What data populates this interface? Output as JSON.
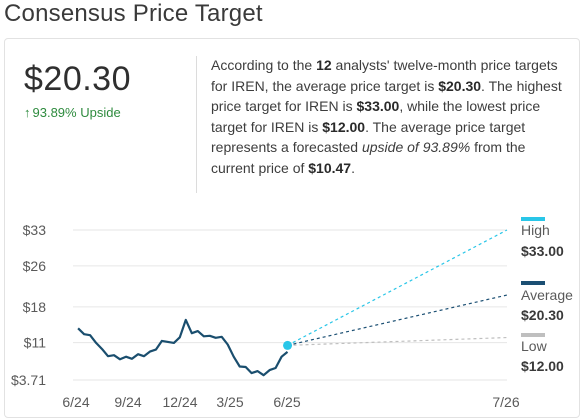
{
  "page_title": "Consensus Price Target",
  "price_target": "$20.30",
  "upside_arrow": "↑",
  "upside_text": "93.89% Upside",
  "summary": {
    "t1": "According to the ",
    "analysts": "12",
    "t2": " analysts' twelve-month price targets for IREN, the average price target is ",
    "avg": "$20.30",
    "t3": ". The highest price target for IREN is ",
    "high": "$33.00",
    "t4": ", while the lowest price target for IREN is ",
    "low": "$12.00",
    "t5": ". The average price target represents a forecasted ",
    "upside_phrase": "upside of 93.89%",
    "t6": " from the current price of ",
    "current": "$10.47",
    "t7": "."
  },
  "chart_data": {
    "type": "line",
    "y_ticks": [
      {
        "label": "$33",
        "value": 33
      },
      {
        "label": "$26",
        "value": 26
      },
      {
        "label": "$18",
        "value": 18
      },
      {
        "label": "$11",
        "value": 11
      },
      {
        "label": "$3.71",
        "value": 3.71
      }
    ],
    "x_ticks": [
      "6/24",
      "9/24",
      "12/24",
      "3/25",
      "6/25",
      "7/26"
    ],
    "ylim": [
      3.71,
      33
    ],
    "grid": true,
    "price_series": {
      "x": [
        "2024-06",
        "2024-06",
        "2024-07",
        "2024-07",
        "2024-07",
        "2024-08",
        "2024-08",
        "2024-08",
        "2024-09",
        "2024-09",
        "2024-09",
        "2024-10",
        "2024-10",
        "2024-10",
        "2024-11",
        "2024-11",
        "2024-11",
        "2024-12",
        "2024-12",
        "2024-12",
        "2025-01",
        "2025-01",
        "2025-01",
        "2025-02",
        "2025-02",
        "2025-02",
        "2025-03",
        "2025-03",
        "2025-03",
        "2025-04",
        "2025-04",
        "2025-04",
        "2025-05",
        "2025-05",
        "2025-05",
        "2025-06"
      ],
      "values": [
        13.8,
        13.0,
        12.1,
        11.3,
        9.4,
        8.7,
        8.2,
        8.1,
        7.9,
        8.2,
        8.4,
        8.7,
        8.9,
        10.0,
        11.0,
        11.5,
        10.6,
        12.4,
        15.1,
        13.2,
        12.9,
        12.6,
        12.0,
        12.3,
        11.8,
        11.0,
        7.9,
        6.7,
        5.9,
        5.4,
        5.1,
        5.0,
        5.3,
        6.4,
        7.9,
        9.2
      ]
    },
    "current_price": 10.47,
    "targets": [
      {
        "name": "High",
        "value": 33.0,
        "value_label": "$33.00",
        "color": "#29c6e8"
      },
      {
        "name": "Average",
        "value": 20.3,
        "value_label": "$20.30",
        "color": "#1b4f73"
      },
      {
        "name": "Low",
        "value": 12.0,
        "value_label": "$12.00",
        "color": "#bfbfbf"
      }
    ],
    "colors": {
      "price_line": "#1a4e6e",
      "current_dot": "#29c6e8",
      "grid": "#e6e6e6"
    }
  }
}
